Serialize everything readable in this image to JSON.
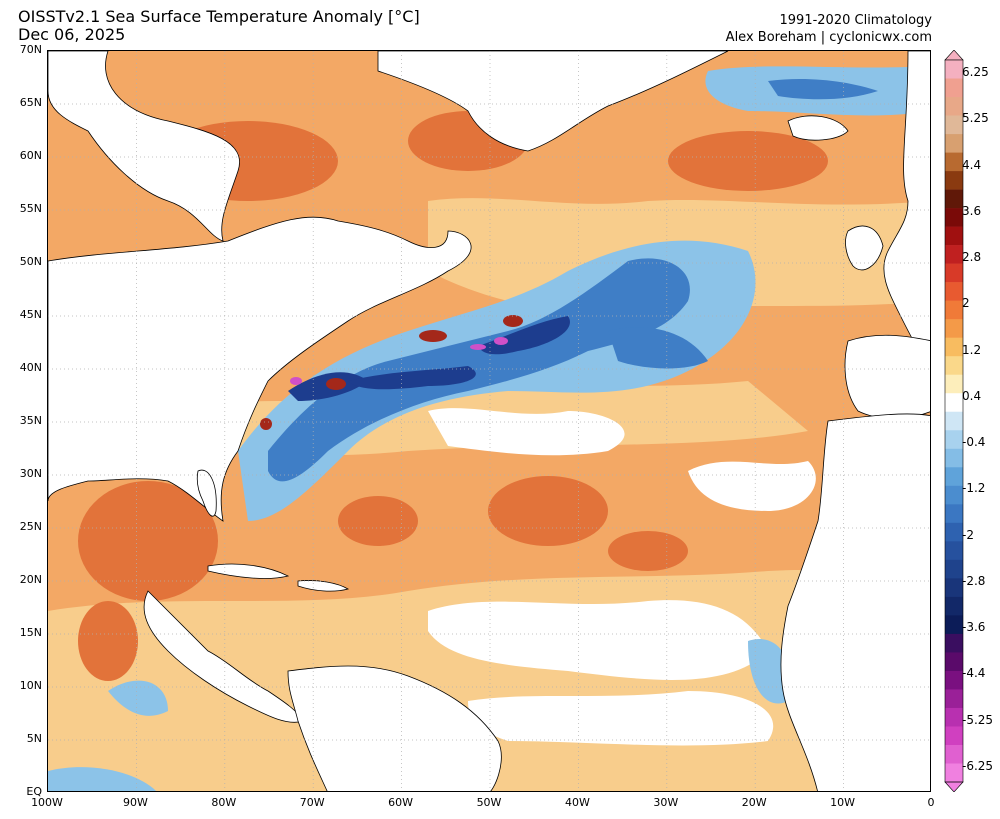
{
  "header": {
    "title": "OISSTv2.1 Sea Surface Temperature Anomaly [°C]",
    "date": "Dec 06, 2025",
    "climatology": "1991-2020 Climatology",
    "credit": "Alex Boreham | cyclonicwx.com"
  },
  "map": {
    "lat_range": [
      0,
      70
    ],
    "lon_range": [
      -100,
      0
    ],
    "lat_labels": [
      "70N",
      "65N",
      "60N",
      "55N",
      "50N",
      "45N",
      "40N",
      "35N",
      "30N",
      "25N",
      "20N",
      "15N",
      "10N",
      "5N",
      "EQ"
    ],
    "lon_labels": [
      "100W",
      "90W",
      "80W",
      "70W",
      "60W",
      "50W",
      "40W",
      "30W",
      "20W",
      "10W",
      "0"
    ],
    "colors": {
      "ocean_warm_mid": "#f0a060",
      "ocean_warm_light": "#f8cc8a",
      "ocean_warm_strong": "#e07a3a",
      "ocean_cool": "#8cc4e8",
      "ocean_cold": "#3c7cc8",
      "ocean_very_cold": "#1c3c90",
      "land": "#ffffff",
      "coast": "#000000"
    }
  },
  "colorbar": {
    "labels": [
      "6.25",
      "5.25",
      "4.4",
      "3.6",
      "2.8",
      "2",
      "1.2",
      "0.4",
      "-0.4",
      "-1.2",
      "-2",
      "-2.8",
      "-3.6",
      "-4.4",
      "-5.25",
      "-6.25"
    ],
    "colors": [
      "#f4b0c0",
      "#f0a090",
      "#e8a888",
      "#e0b898",
      "#d8a070",
      "#b86a30",
      "#8a3a10",
      "#601808",
      "#7a0a08",
      "#a01010",
      "#c02020",
      "#d83a28",
      "#e85a30",
      "#f07a38",
      "#f49a48",
      "#f8bc60",
      "#fad88a",
      "#fdeebb",
      "#ffffff",
      "#cfe6f5",
      "#a8d2ee",
      "#84bde6",
      "#5fa3da",
      "#4b8dcf",
      "#3b77c2",
      "#2e62b0",
      "#26519e",
      "#1f438c",
      "#19357a",
      "#122868",
      "#0c1c58",
      "#3a0e60",
      "#5a0a6a",
      "#7a1080",
      "#9a2098",
      "#b830b0",
      "#d040c0",
      "#e060d0",
      "#f080e0"
    ]
  }
}
